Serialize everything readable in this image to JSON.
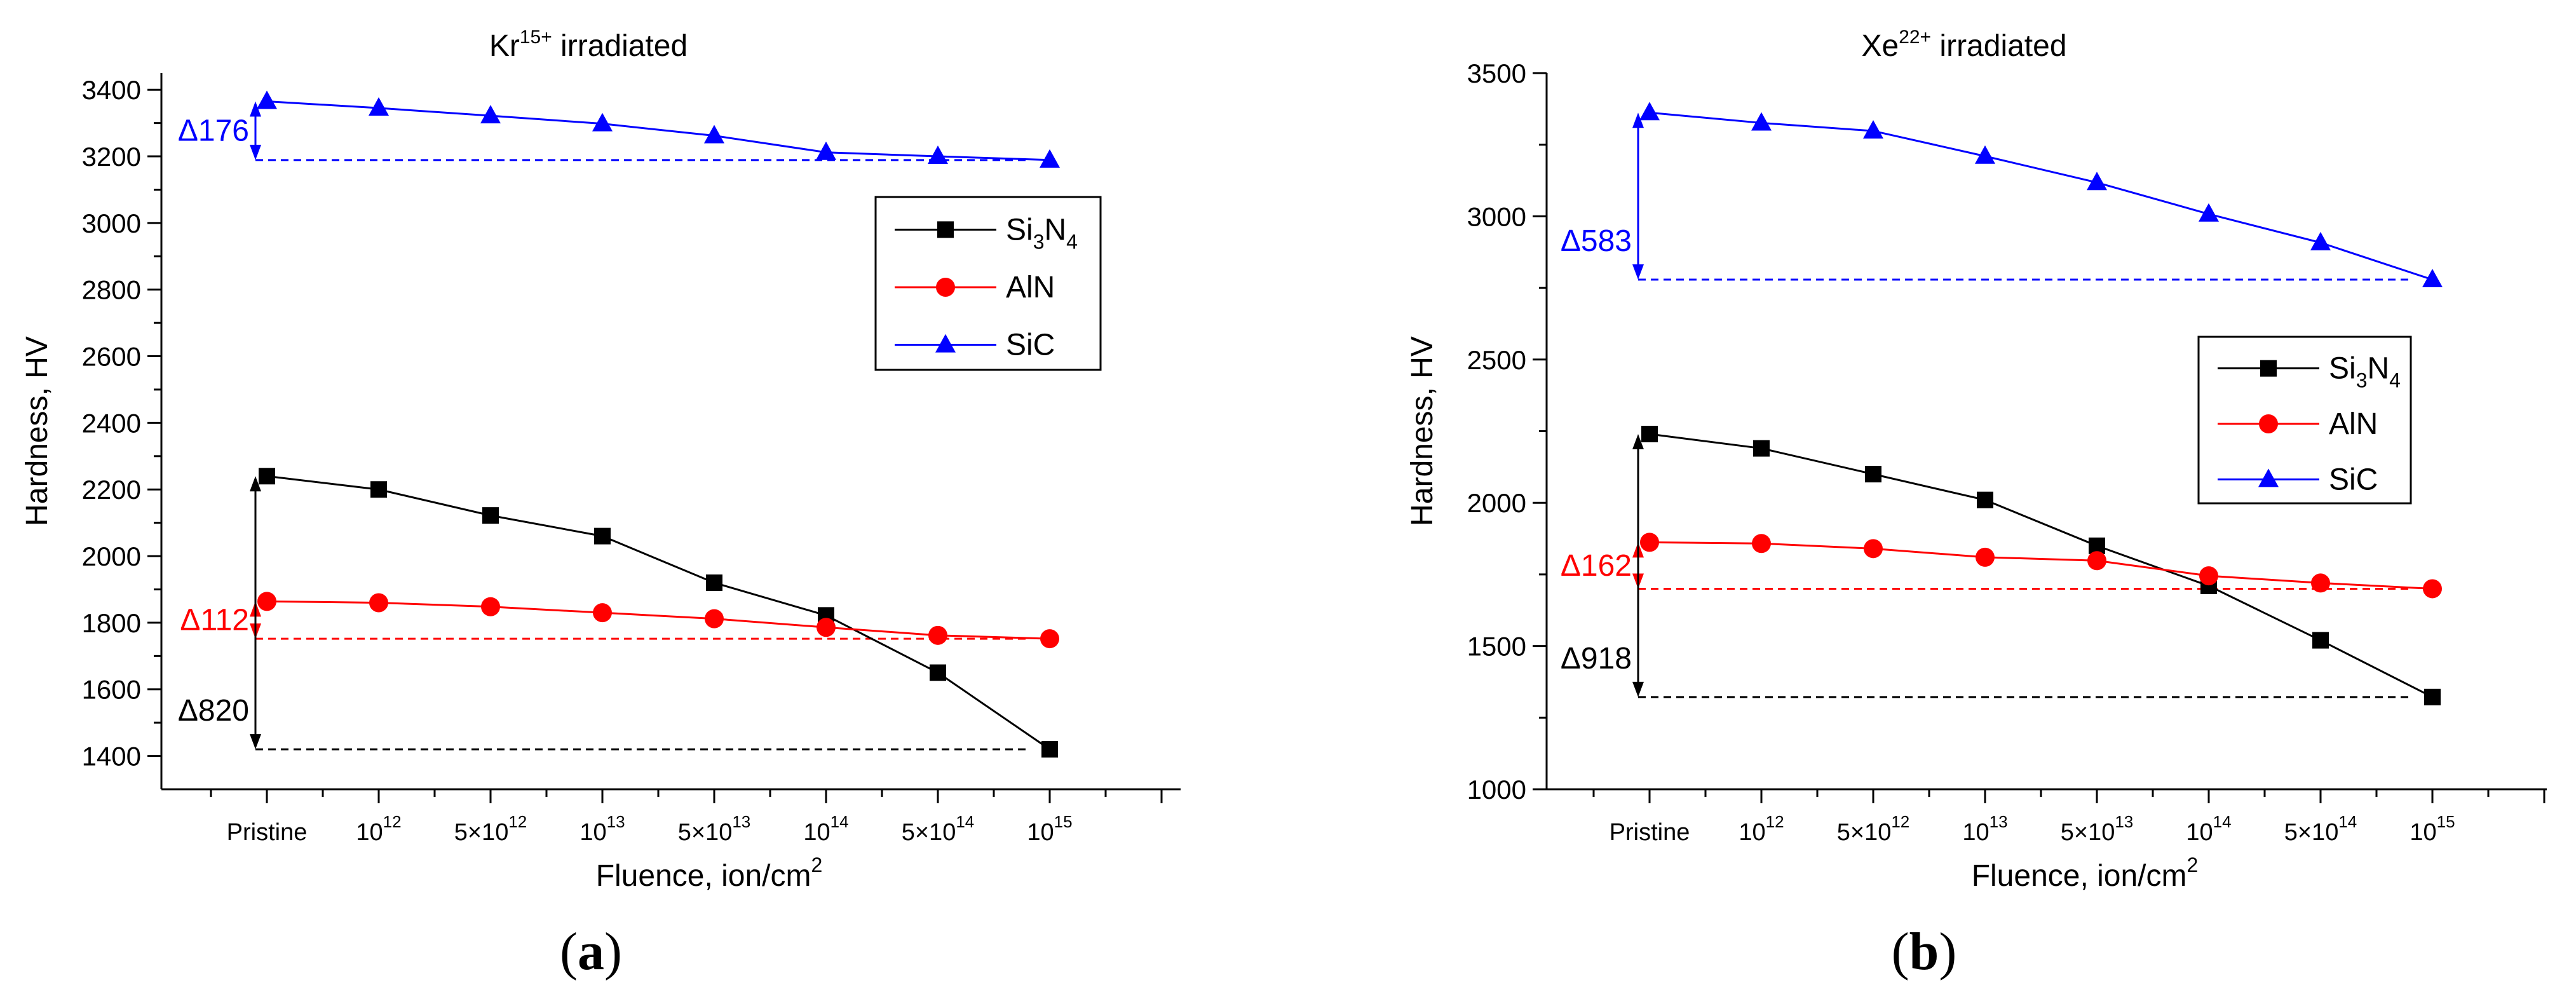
{
  "figure": {
    "label_a_open": "(",
    "label_a_letter": "a",
    "label_a_close": ")",
    "label_b_open": "(",
    "label_b_letter": "b",
    "label_b_close": ")"
  },
  "colors": {
    "Si3N4": "#000000",
    "AlN": "#ff0000",
    "SiC": "#0000ff"
  },
  "chart_data": [
    {
      "type": "line",
      "panel": "a",
      "title": {
        "prefix": "Kr",
        "sup": "15+",
        "suffix": " irradiated"
      },
      "xlabel": {
        "text": "Fluence, ion/cm",
        "sup": "2"
      },
      "ylabel": "Hardness, HV",
      "categories": [
        {
          "base": "Pristine",
          "sup": ""
        },
        {
          "base": "10",
          "sup": "12"
        },
        {
          "base": "5×10",
          "sup": "12"
        },
        {
          "base": "10",
          "sup": "13"
        },
        {
          "base": "5×10",
          "sup": "13"
        },
        {
          "base": "10",
          "sup": "14"
        },
        {
          "base": "5×10",
          "sup": "14"
        },
        {
          "base": "10",
          "sup": "15"
        }
      ],
      "ylim": [
        1300,
        3450
      ],
      "yticks": [
        1400,
        1600,
        1800,
        2000,
        2200,
        2400,
        2600,
        2800,
        3000,
        3200,
        3400
      ],
      "series": [
        {
          "key": "Si3N4",
          "name": "Si3N4",
          "marker": "square",
          "values": [
            2240,
            2200,
            2122,
            2060,
            1920,
            1822,
            1650,
            1420
          ]
        },
        {
          "key": "AlN",
          "name": "AlN",
          "marker": "circle",
          "values": [
            1864,
            1860,
            1848,
            1830,
            1812,
            1786,
            1762,
            1752
          ]
        },
        {
          "key": "SiC",
          "name": "SiC",
          "marker": "triangle",
          "values": [
            3365,
            3345,
            3322,
            3298,
            3262,
            3212,
            3200,
            3189
          ]
        }
      ],
      "annotations": [
        {
          "series": "SiC",
          "text": "Δ176",
          "from": 3365,
          "to": 3189
        },
        {
          "series": "AlN",
          "text": "Δ112",
          "from": 1864,
          "to": 1752
        },
        {
          "series": "Si3N4",
          "text": "Δ820",
          "from": 2240,
          "to": 1420
        }
      ],
      "legend": {
        "position": "right-upper",
        "entries": [
          {
            "key": "Si3N4",
            "base": "Si",
            "sub1": "3",
            "mid": "N",
            "sub2": "4"
          },
          {
            "key": "AlN",
            "base": "AlN",
            "sub1": "",
            "mid": "",
            "sub2": ""
          },
          {
            "key": "SiC",
            "base": "SiC",
            "sub1": "",
            "mid": "",
            "sub2": ""
          }
        ]
      }
    },
    {
      "type": "line",
      "panel": "b",
      "title": {
        "prefix": "Xe",
        "sup": "22+",
        "suffix": " irradiated"
      },
      "xlabel": {
        "text": "Fluence, ion/cm",
        "sup": "2"
      },
      "ylabel": "Hardness, HV",
      "categories": [
        {
          "base": "Pristine",
          "sup": ""
        },
        {
          "base": "10",
          "sup": "12"
        },
        {
          "base": "5×10",
          "sup": "12"
        },
        {
          "base": "10",
          "sup": "13"
        },
        {
          "base": "5×10",
          "sup": "13"
        },
        {
          "base": "10",
          "sup": "14"
        },
        {
          "base": "5×10",
          "sup": "14"
        },
        {
          "base": "10",
          "sup": "15"
        }
      ],
      "ylim": [
        1000,
        3500
      ],
      "yticks": [
        1000,
        1500,
        2000,
        2500,
        3000,
        3500
      ],
      "series": [
        {
          "key": "Si3N4",
          "name": "Si3N4",
          "marker": "square",
          "values": [
            2240,
            2190,
            2100,
            2010,
            1850,
            1710,
            1520,
            1322
          ]
        },
        {
          "key": "AlN",
          "name": "AlN",
          "marker": "circle",
          "values": [
            1862,
            1858,
            1840,
            1810,
            1798,
            1745,
            1720,
            1700
          ]
        },
        {
          "key": "SiC",
          "name": "SiC",
          "marker": "triangle",
          "values": [
            3362,
            3326,
            3298,
            3210,
            3118,
            3008,
            2908,
            2779
          ]
        }
      ],
      "annotations": [
        {
          "series": "SiC",
          "text": "Δ583",
          "from": 3362,
          "to": 2779
        },
        {
          "series": "AlN",
          "text": "Δ162",
          "from": 1862,
          "to": 1700
        },
        {
          "series": "Si3N4",
          "text": "Δ918",
          "from": 2240,
          "to": 1322
        }
      ],
      "legend": {
        "position": "right-middle",
        "entries": [
          {
            "key": "Si3N4",
            "base": "Si",
            "sub1": "3",
            "mid": "N",
            "sub2": "4"
          },
          {
            "key": "AlN",
            "base": "AlN",
            "sub1": "",
            "mid": "",
            "sub2": ""
          },
          {
            "key": "SiC",
            "base": "SiC",
            "sub1": "",
            "mid": "",
            "sub2": ""
          }
        ]
      }
    }
  ]
}
